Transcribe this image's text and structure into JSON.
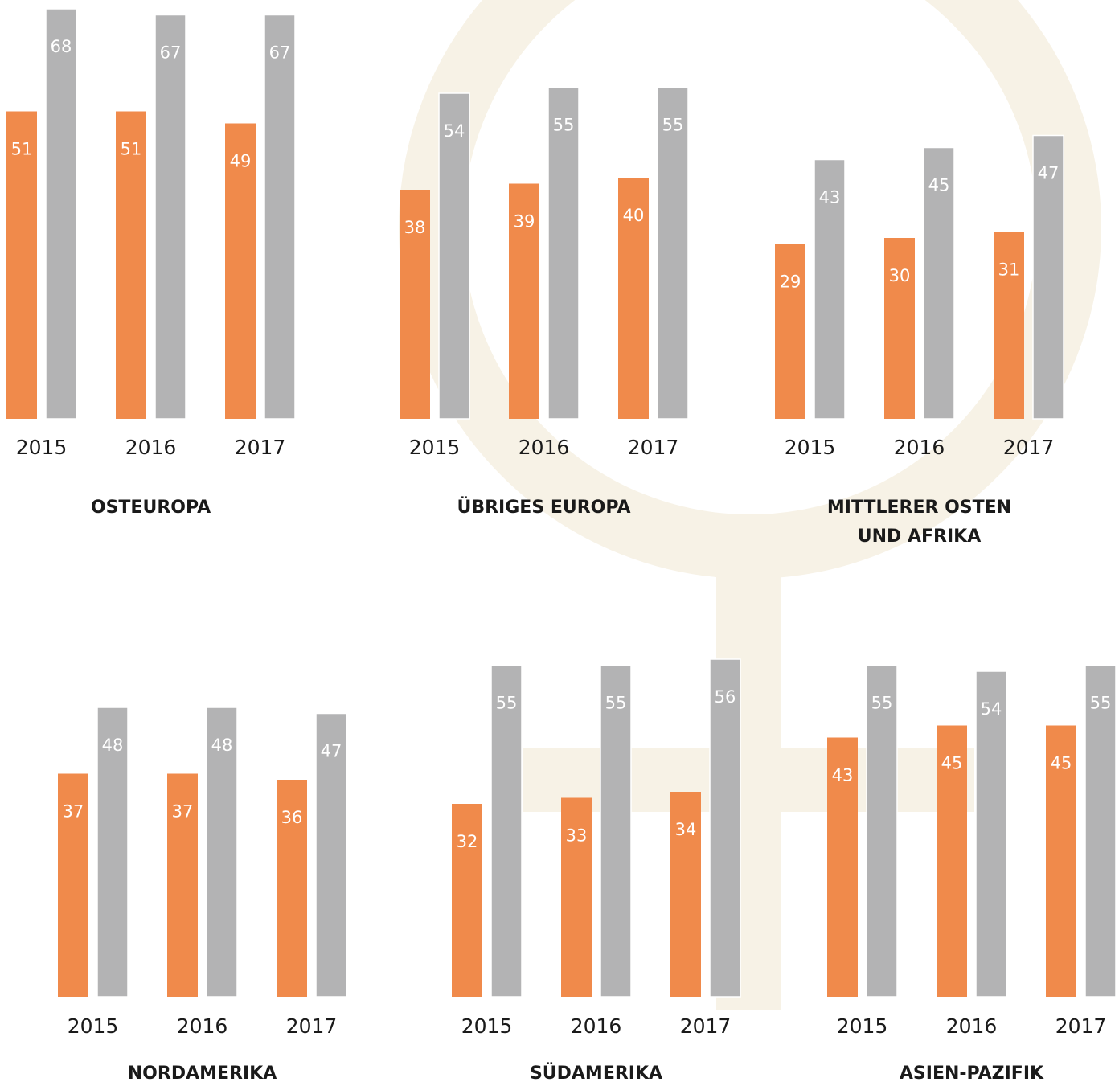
{
  "chart_data": [
    {
      "type": "bar",
      "title": "OSTEUROPA",
      "categories": [
        "2015",
        "2016",
        "2017"
      ],
      "series": [
        {
          "color": "#f08a4b",
          "values": [
            51,
            51,
            49
          ]
        },
        {
          "color": "#b3b3b4",
          "values": [
            68,
            67,
            67
          ]
        }
      ]
    },
    {
      "type": "bar",
      "title": "ÜBRIGES EUROPA",
      "categories": [
        "2015",
        "2016",
        "2017"
      ],
      "series": [
        {
          "color": "#f08a4b",
          "values": [
            38,
            39,
            40
          ]
        },
        {
          "color": "#b3b3b4",
          "values": [
            54,
            55,
            55
          ]
        }
      ]
    },
    {
      "type": "bar",
      "title": "MITTLERER OSTEN\nUND AFRIKA",
      "categories": [
        "2015",
        "2016",
        "2017"
      ],
      "series": [
        {
          "color": "#f08a4b",
          "values": [
            29,
            30,
            31
          ]
        },
        {
          "color": "#b3b3b4",
          "values": [
            43,
            45,
            47
          ]
        }
      ]
    },
    {
      "type": "bar",
      "title": "NORDAMERIKA",
      "categories": [
        "2015",
        "2016",
        "2017"
      ],
      "series": [
        {
          "color": "#f08a4b",
          "values": [
            37,
            37,
            36
          ]
        },
        {
          "color": "#b3b3b4",
          "values": [
            48,
            48,
            47
          ]
        }
      ]
    },
    {
      "type": "bar",
      "title": "SÜDAMERIKA",
      "categories": [
        "2015",
        "2016",
        "2017"
      ],
      "series": [
        {
          "color": "#f08a4b",
          "values": [
            32,
            33,
            34
          ]
        },
        {
          "color": "#b3b3b4",
          "values": [
            55,
            55,
            56
          ]
        }
      ]
    },
    {
      "type": "bar",
      "title": "ASIEN-PAZIFIK",
      "categories": [
        "2015",
        "2016",
        "2017"
      ],
      "series": [
        {
          "color": "#f08a4b",
          "values": [
            43,
            45,
            45
          ]
        },
        {
          "color": "#b3b3b4",
          "values": [
            55,
            54,
            55
          ]
        }
      ]
    }
  ]
}
